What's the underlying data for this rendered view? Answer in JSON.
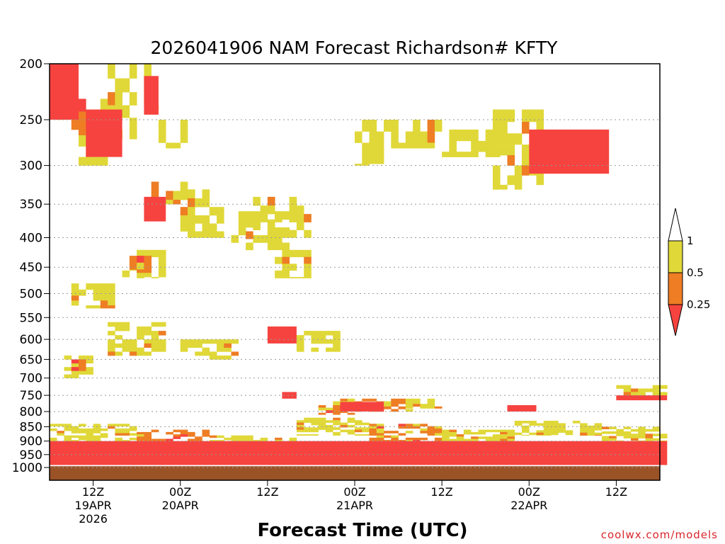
{
  "chart_data": {
    "type": "heatmap",
    "title": "2026041906 NAM Forecast Richardson# KFTY",
    "xlabel": "Forecast Time (UTC)",
    "ylabel": "",
    "credit": "coolwx.com/models",
    "y_ticks": [
      "200",
      "250",
      "300",
      "350",
      "400",
      "450",
      "500",
      "550",
      "600",
      "650",
      "700",
      "750",
      "800",
      "850",
      "900",
      "950",
      "1000"
    ],
    "x_ticks": [
      {
        "time": "12Z",
        "date": "19APR",
        "year": "2026"
      },
      {
        "time": "00Z",
        "date": "20APR",
        "year": ""
      },
      {
        "time": "12Z",
        "date": "",
        "year": ""
      },
      {
        "time": "00Z",
        "date": "21APR",
        "year": ""
      },
      {
        "time": "12Z",
        "date": "",
        "year": ""
      },
      {
        "time": "00Z",
        "date": "22APR",
        "year": ""
      },
      {
        "time": "12Z",
        "date": "",
        "year": ""
      }
    ],
    "x_range_hours": [
      6,
      90
    ],
    "colorbar": {
      "labels": [
        "1",
        "0.5",
        "0.25"
      ],
      "bins": [
        {
          "range": "0.5 - 1",
          "color": "#e0d838"
        },
        {
          "range": "0.25 - 0.5",
          "color": "#ee7d24"
        },
        {
          "range": "< 0.25",
          "color": "#f6433f"
        }
      ]
    },
    "ground_color": "#9a5227",
    "categories": [
      "< 0.25",
      "0.25 - 0.5",
      "0.5 - 1"
    ],
    "regions": [
      {
        "cat": 2,
        "t": [
          6,
          9
        ],
        "p": [
          200,
          250
        ]
      },
      {
        "cat": 2,
        "t": [
          10,
          14
        ],
        "p": [
          230,
          300
        ]
      },
      {
        "cat": 2,
        "t": [
          14,
          18
        ],
        "p": [
          200,
          270
        ]
      },
      {
        "cat": 1,
        "t": [
          9,
          11
        ],
        "p": [
          230,
          260
        ]
      },
      {
        "cat": 2,
        "t": [
          19,
          21
        ],
        "p": [
          200,
          240
        ]
      },
      {
        "cat": 2,
        "t": [
          21,
          25
        ],
        "p": [
          250,
          280
        ]
      },
      {
        "cat": 1,
        "t": [
          20,
          25
        ],
        "p": [
          320,
          350
        ]
      },
      {
        "cat": 2,
        "t": [
          24,
          30
        ],
        "p": [
          330,
          400
        ]
      },
      {
        "cat": 2,
        "t": [
          31,
          39
        ],
        "p": [
          360,
          420
        ]
      },
      {
        "cat": 1,
        "t": [
          33,
          35
        ],
        "p": [
          390,
          420
        ]
      },
      {
        "cat": 2,
        "t": [
          34,
          42
        ],
        "p": [
          340,
          400
        ]
      },
      {
        "cat": 2,
        "t": [
          37,
          42
        ],
        "p": [
          420,
          470
        ]
      },
      {
        "cat": 2,
        "t": [
          48,
          52
        ],
        "p": [
          250,
          300
        ]
      },
      {
        "cat": 2,
        "t": [
          52,
          60
        ],
        "p": [
          250,
          280
        ]
      },
      {
        "cat": 2,
        "t": [
          60,
          68
        ],
        "p": [
          260,
          290
        ]
      },
      {
        "cat": 2,
        "t": [
          67,
          74
        ],
        "p": [
          240,
          330
        ]
      },
      {
        "cat": 1,
        "t": [
          73,
          77
        ],
        "p": [
          260,
          290
        ]
      },
      {
        "cat": 2,
        "t": [
          16,
          22
        ],
        "p": [
          420,
          470
        ]
      },
      {
        "cat": 1,
        "t": [
          17,
          20
        ],
        "p": [
          430,
          460
        ]
      },
      {
        "cat": 2,
        "t": [
          9,
          15
        ],
        "p": [
          480,
          530
        ]
      },
      {
        "cat": 2,
        "t": [
          14,
          22
        ],
        "p": [
          560,
          640
        ]
      },
      {
        "cat": 2,
        "t": [
          24,
          32
        ],
        "p": [
          600,
          650
        ]
      },
      {
        "cat": 1,
        "t": [
          29,
          31
        ],
        "p": [
          610,
          640
        ]
      },
      {
        "cat": 2,
        "t": [
          40,
          46
        ],
        "p": [
          580,
          630
        ]
      },
      {
        "cat": 2,
        "t": [
          8,
          12
        ],
        "p": [
          640,
          700
        ]
      },
      {
        "cat": 1,
        "t": [
          9,
          11
        ],
        "p": [
          650,
          680
        ]
      },
      {
        "cat": 2,
        "t": [
          45,
          49
        ],
        "p": [
          760,
          790
        ]
      },
      {
        "cat": 1,
        "t": [
          43,
          48
        ],
        "p": [
          780,
          810
        ]
      },
      {
        "cat": 1,
        "t": [
          48,
          56
        ],
        "p": [
          760,
          800
        ]
      },
      {
        "cat": 2,
        "t": [
          55,
          60
        ],
        "p": [
          760,
          790
        ]
      },
      {
        "cat": 2,
        "t": [
          84,
          91
        ],
        "p": [
          720,
          750
        ]
      },
      {
        "cat": 2,
        "t": [
          6,
          18
        ],
        "p": [
          840,
          900
        ]
      },
      {
        "cat": 1,
        "t": [
          18,
          28
        ],
        "p": [
          860,
          920
        ]
      },
      {
        "cat": 2,
        "t": [
          28,
          40
        ],
        "p": [
          880,
          940
        ]
      },
      {
        "cat": 2,
        "t": [
          40,
          50
        ],
        "p": [
          820,
          880
        ]
      },
      {
        "cat": 1,
        "t": [
          50,
          60
        ],
        "p": [
          840,
          900
        ]
      },
      {
        "cat": 2,
        "t": [
          60,
          70
        ],
        "p": [
          860,
          920
        ]
      },
      {
        "cat": 2,
        "t": [
          70,
          82
        ],
        "p": [
          830,
          880
        ]
      },
      {
        "cat": 2,
        "t": [
          82,
          91
        ],
        "p": [
          850,
          900
        ]
      }
    ],
    "blocks": [
      {
        "t0": 6,
        "t1": 10,
        "p0": 200,
        "p1": 250,
        "v": 0.1
      },
      {
        "t0": 11,
        "t1": 16,
        "p0": 240,
        "p1": 290,
        "v": 0.1
      },
      {
        "t0": 19,
        "t1": 21,
        "p0": 210,
        "p1": 245,
        "v": 0.1
      },
      {
        "t0": 19,
        "t1": 22,
        "p0": 340,
        "p1": 375,
        "v": 0.1
      },
      {
        "t0": 36,
        "t1": 40,
        "p0": 570,
        "p1": 610,
        "v": 0.1
      },
      {
        "t0": 72,
        "t1": 83,
        "p0": 260,
        "p1": 310,
        "v": 0.1
      },
      {
        "t0": 38,
        "t1": 40,
        "p0": 740,
        "p1": 760,
        "v": 0.1
      },
      {
        "t0": 46,
        "t1": 52,
        "p0": 770,
        "p1": 800,
        "v": 0.1
      },
      {
        "t0": 84,
        "t1": 91,
        "p0": 750,
        "p1": 765,
        "v": 0.1
      },
      {
        "t0": 69,
        "t1": 73,
        "p0": 780,
        "p1": 800,
        "v": 0.1
      },
      {
        "t0": 6,
        "t1": 91,
        "p0": 900,
        "p1": 990,
        "v": 0.1
      }
    ]
  }
}
